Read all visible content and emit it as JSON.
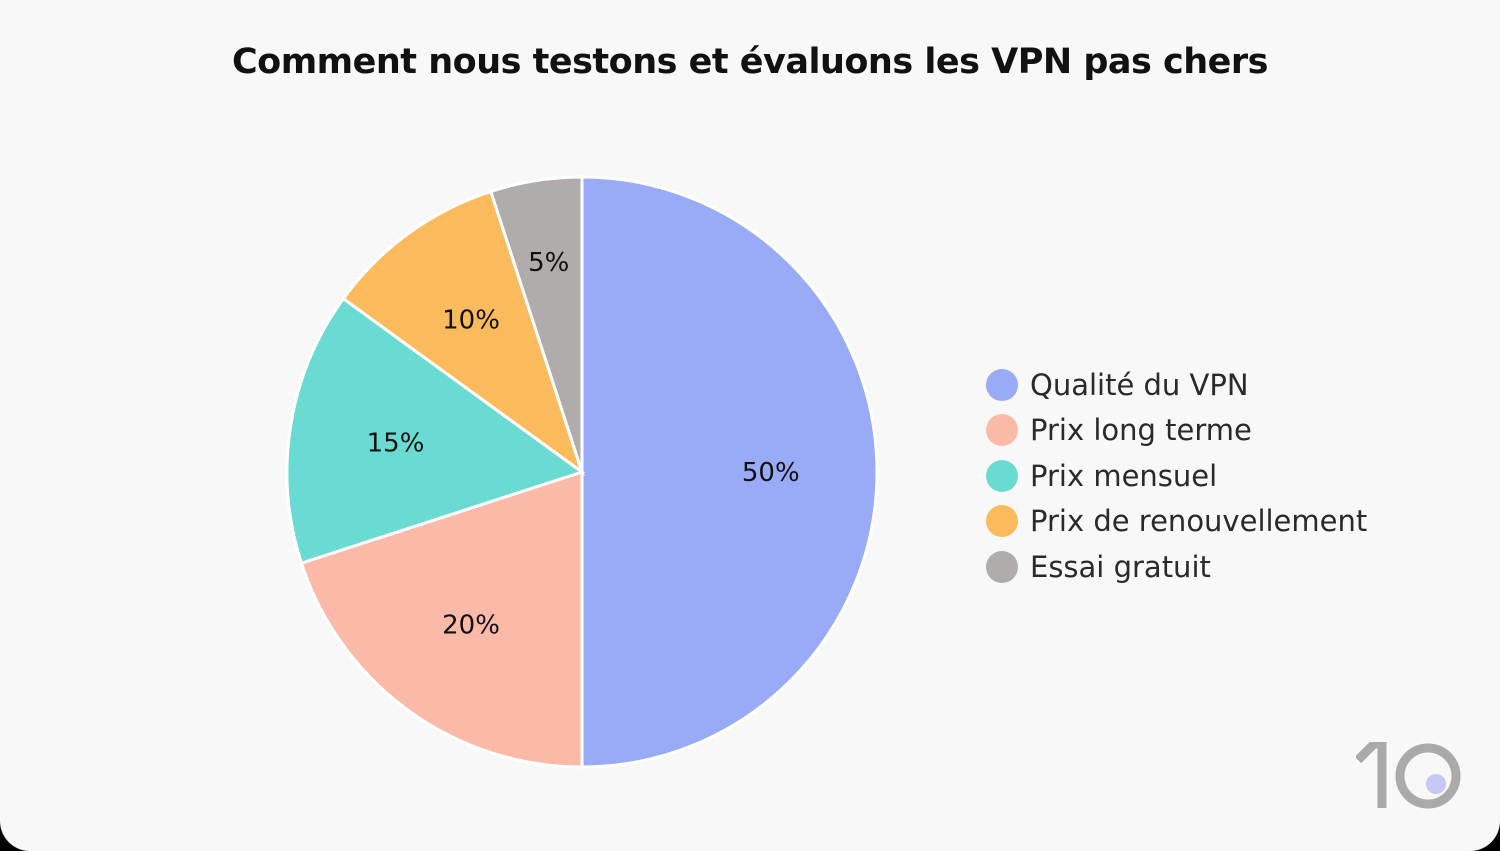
{
  "chart_data": {
    "type": "pie",
    "title": "Comment nous testons et évaluons les VPN pas chers",
    "slices": [
      {
        "label": "Qualité du VPN",
        "value": 50,
        "data_label": "50%",
        "color": "#99abf7"
      },
      {
        "label": "Prix long terme",
        "value": 20,
        "data_label": "20%",
        "color": "#fbb9a8"
      },
      {
        "label": "Prix mensuel",
        "value": 15,
        "data_label": "15%",
        "color": "#69dbd3"
      },
      {
        "label": "Prix de renouvellement",
        "value": 10,
        "data_label": "10%",
        "color": "#fbbb5d"
      },
      {
        "label": "Essai gratuit",
        "value": 5,
        "data_label": "5%",
        "color": "#b0acab"
      }
    ],
    "legend_position": "right",
    "start": "top",
    "direction": "clockwise"
  },
  "logo": {
    "text": "10"
  }
}
